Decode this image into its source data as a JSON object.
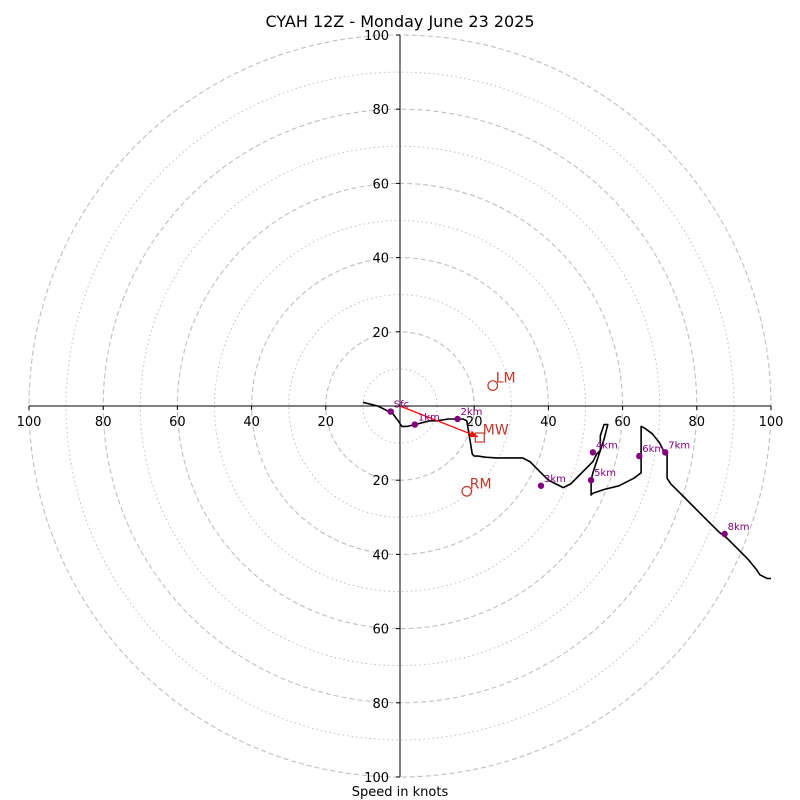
{
  "chart_data": {
    "type": "line",
    "title": "CYAH 12Z - Monday June 23 2025",
    "xlabel": "Speed in knots",
    "ylabel": "",
    "xlim": [
      -100,
      100
    ],
    "ylim": [
      -100,
      100
    ],
    "rings_major": [
      20,
      40,
      60,
      80,
      100
    ],
    "rings_minor": [
      10,
      30,
      50,
      70,
      90
    ],
    "x_ticks": [
      {
        "value": -100,
        "label": "100"
      },
      {
        "value": -80,
        "label": "80"
      },
      {
        "value": -60,
        "label": "60"
      },
      {
        "value": -40,
        "label": "40"
      },
      {
        "value": -20,
        "label": "20"
      },
      {
        "value": 20,
        "label": "20"
      },
      {
        "value": 40,
        "label": "40"
      },
      {
        "value": 60,
        "label": "60"
      },
      {
        "value": 80,
        "label": "80"
      },
      {
        "value": 100,
        "label": "100"
      }
    ],
    "y_ticks": [
      {
        "value": 100,
        "label": "100"
      },
      {
        "value": 80,
        "label": "80"
      },
      {
        "value": 60,
        "label": "60"
      },
      {
        "value": 40,
        "label": "40"
      },
      {
        "value": 20,
        "label": "20"
      },
      {
        "value": -20,
        "label": "20"
      },
      {
        "value": -40,
        "label": "40"
      },
      {
        "value": -60,
        "label": "60"
      },
      {
        "value": -80,
        "label": "80"
      },
      {
        "value": -100,
        "label": "100"
      }
    ],
    "hodograph": {
      "x": [
        -10,
        -6,
        -2,
        -0.5,
        0.5,
        1,
        2,
        4,
        6,
        8,
        10,
        13,
        15,
        16,
        17,
        18,
        18.5,
        19,
        19.5,
        20,
        21,
        23,
        26,
        30,
        33,
        35,
        37,
        38,
        40,
        42,
        44,
        46,
        48,
        50,
        52,
        53,
        54,
        54,
        55,
        56,
        55,
        54,
        53,
        52,
        51.5,
        51.5,
        51.5,
        51.5,
        52,
        55,
        59,
        63,
        65,
        65,
        65,
        65,
        65,
        66,
        68,
        70,
        71,
        71.5,
        72,
        72,
        72,
        73,
        75,
        78,
        80,
        82,
        84,
        86,
        88,
        90,
        92,
        94,
        96,
        97,
        98,
        99,
        100
      ],
      "y": [
        1,
        0,
        -2,
        -4,
        -5.5,
        -5.5,
        -5.5,
        -5,
        -4.5,
        -4,
        -4,
        -3.5,
        -3.5,
        -3.5,
        -3.5,
        -4,
        -7,
        -10,
        -13,
        -13.5,
        -13.5,
        -13.8,
        -14,
        -14,
        -14,
        -15,
        -17,
        -18,
        -20,
        -21,
        -22,
        -21,
        -19,
        -17,
        -15,
        -13,
        -12,
        -8,
        -5,
        -5,
        -9,
        -12,
        -15,
        -18,
        -20,
        -22,
        -23,
        -24,
        -23.5,
        -22.5,
        -21.5,
        -19.5,
        -18,
        -15,
        -12,
        -9,
        -5.5,
        -6,
        -7.5,
        -10,
        -12,
        -12.5,
        -13,
        -16,
        -19.5,
        -21,
        -23,
        -26,
        -28,
        -30,
        -32,
        -34,
        -35.5,
        -37.5,
        -39.5,
        -41.5,
        -44,
        -45.5,
        -46,
        -46.5,
        -46.5
      ]
    },
    "height_markers": [
      {
        "label": "Sfc",
        "x": -2.5,
        "y": -1.5
      },
      {
        "label": "1km",
        "x": 4,
        "y": -5
      },
      {
        "label": "2km",
        "x": 15.5,
        "y": -3.5
      },
      {
        "label": "3km",
        "x": 38,
        "y": -21.5
      },
      {
        "label": "4km",
        "x": 52,
        "y": -12.5
      },
      {
        "label": "5km",
        "x": 51.5,
        "y": -20
      },
      {
        "label": "6km",
        "x": 64.5,
        "y": -13.5
      },
      {
        "label": "7km",
        "x": 71.5,
        "y": -12.5
      },
      {
        "label": "8km",
        "x": 87.5,
        "y": -34.5
      }
    ],
    "storm_motion": [
      {
        "label": "LM",
        "x": 25,
        "y": 5.5,
        "shape": "circle"
      },
      {
        "label": "RM",
        "x": 18,
        "y": -23,
        "shape": "circle"
      },
      {
        "label": "MW",
        "x": 21.5,
        "y": -8.5,
        "shape": "square"
      }
    ],
    "arrow": {
      "from": [
        0,
        0
      ],
      "to": [
        21,
        -8.3
      ]
    },
    "colors": {
      "hodograph": "#000000",
      "height_marker": "#800080",
      "storm_motion": "#c0392b",
      "arrow": "#ff0000",
      "grid": "#bfbfbf"
    }
  }
}
